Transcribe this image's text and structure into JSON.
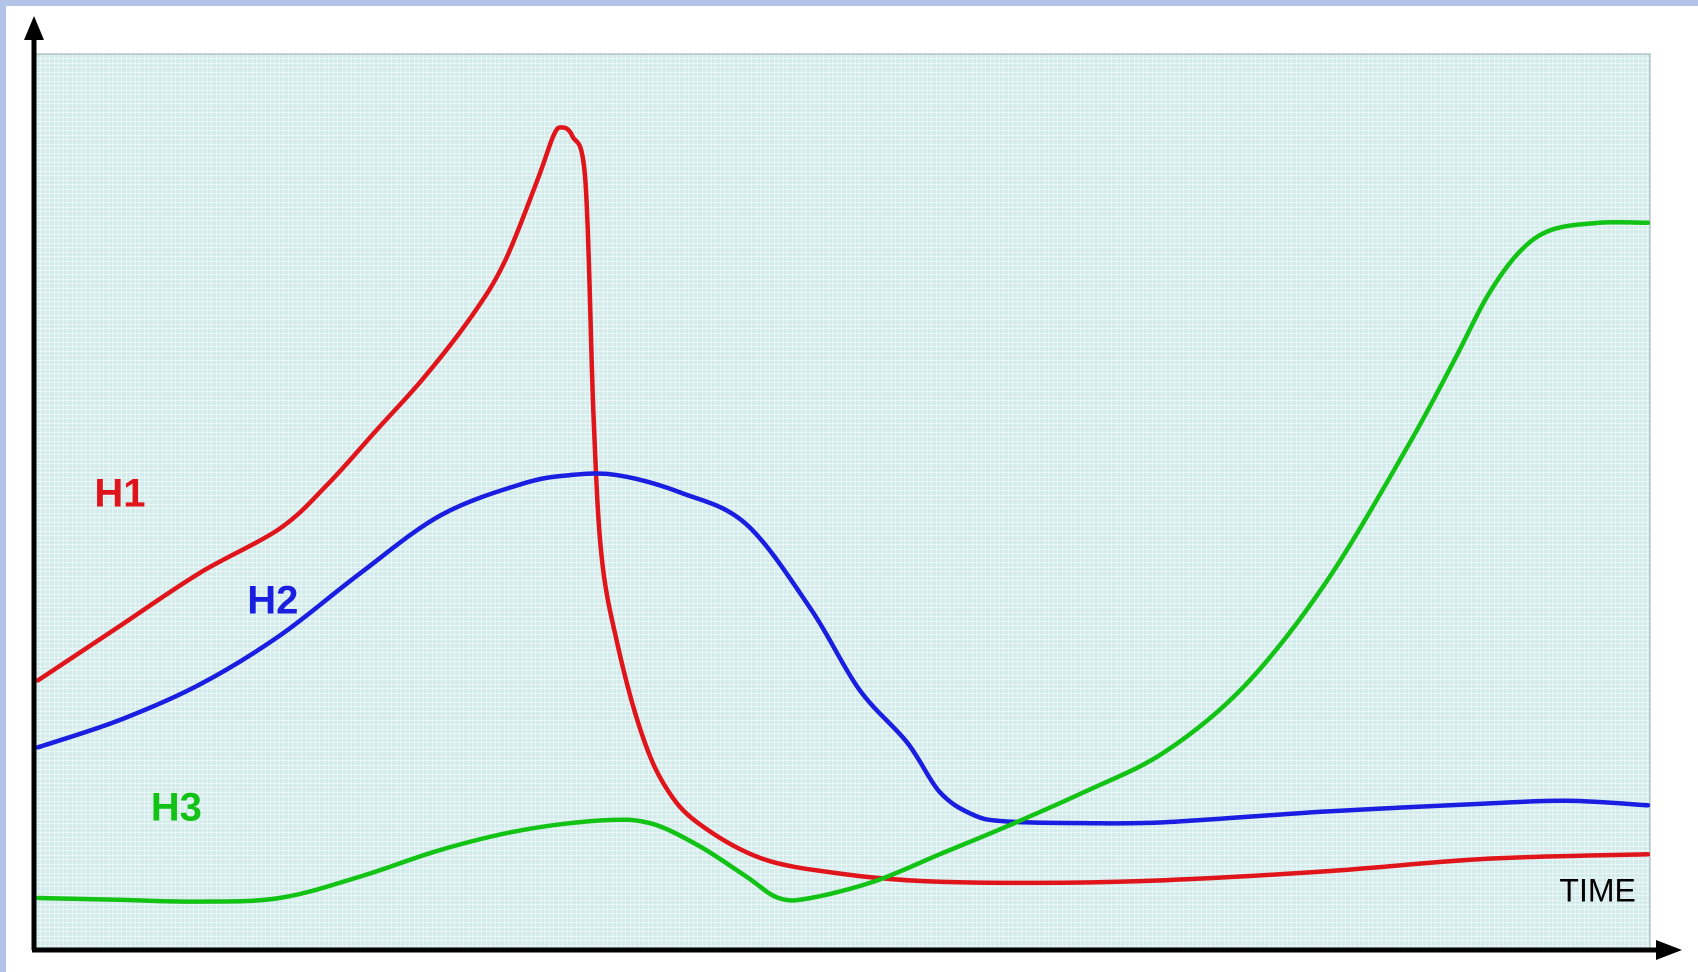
{
  "colors": {
    "page_border": "#b3c3e8",
    "plot_background": "#d4ebec",
    "grid_line": "#ffffff",
    "axis": "#000000",
    "h1": "#e0151b",
    "h2": "#1a1ee0",
    "h3": "#12c214"
  },
  "chart_data": {
    "type": "line",
    "title": "",
    "xlabel": "TIME",
    "ylabel": "",
    "xlim": [
      0,
      100
    ],
    "ylim": [
      0,
      100
    ],
    "grid": true,
    "legend": "none",
    "series": [
      {
        "name": "H1",
        "color": "#e0151b",
        "points": [
          [
            0,
            30
          ],
          [
            5,
            36
          ],
          [
            10,
            42
          ],
          [
            15,
            47
          ],
          [
            18,
            52
          ],
          [
            21,
            58
          ],
          [
            24,
            64
          ],
          [
            27,
            71
          ],
          [
            29,
            77
          ],
          [
            31,
            86
          ],
          [
            32,
            91
          ],
          [
            32.5,
            92
          ],
          [
            33.2,
            91
          ],
          [
            34,
            86
          ],
          [
            34.5,
            60
          ],
          [
            35,
            44
          ],
          [
            36,
            34
          ],
          [
            37.5,
            24
          ],
          [
            39,
            18
          ],
          [
            41,
            14
          ],
          [
            45,
            10
          ],
          [
            50,
            8.3
          ],
          [
            55,
            7.5
          ],
          [
            62,
            7.3
          ],
          [
            70,
            7.6
          ],
          [
            80,
            8.6
          ],
          [
            90,
            10
          ],
          [
            100,
            10.5
          ]
        ]
      },
      {
        "name": "H2",
        "color": "#1a1ee0",
        "points": [
          [
            0,
            22.5
          ],
          [
            5,
            25.5
          ],
          [
            10,
            29.5
          ],
          [
            15,
            35
          ],
          [
            20,
            42
          ],
          [
            25,
            48.5
          ],
          [
            30,
            52
          ],
          [
            33,
            53
          ],
          [
            36,
            53
          ],
          [
            40,
            51
          ],
          [
            44,
            47.5
          ],
          [
            48,
            38
          ],
          [
            51,
            29
          ],
          [
            54,
            23
          ],
          [
            56,
            17.5
          ],
          [
            58,
            15
          ],
          [
            60,
            14.2
          ],
          [
            65,
            14
          ],
          [
            70,
            14.1
          ],
          [
            80,
            15.3
          ],
          [
            90,
            16.2
          ],
          [
            95,
            16.5
          ],
          [
            100,
            16
          ]
        ]
      },
      {
        "name": "H3",
        "color": "#12c214",
        "points": [
          [
            0,
            5.6
          ],
          [
            5,
            5.4
          ],
          [
            10,
            5.2
          ],
          [
            15,
            5.6
          ],
          [
            20,
            8
          ],
          [
            25,
            11
          ],
          [
            30,
            13.2
          ],
          [
            35,
            14.3
          ],
          [
            38,
            14
          ],
          [
            41,
            11.5
          ],
          [
            44,
            8
          ],
          [
            46,
            5.6
          ],
          [
            48,
            5.6
          ],
          [
            52,
            7.5
          ],
          [
            56,
            10.5
          ],
          [
            60,
            13.5
          ],
          [
            65,
            17.5
          ],
          [
            70,
            22
          ],
          [
            75,
            29.5
          ],
          [
            80,
            41
          ],
          [
            85,
            56
          ],
          [
            88,
            66
          ],
          [
            90,
            73
          ],
          [
            92,
            78
          ],
          [
            94,
            80.5
          ],
          [
            97,
            81.3
          ],
          [
            100,
            81.3
          ]
        ]
      }
    ],
    "annotations": [
      {
        "series": "H1",
        "text": "H1",
        "x": 3.5,
        "y": 49.5
      },
      {
        "series": "H2",
        "text": "H2",
        "x": 13,
        "y": 37.5
      },
      {
        "series": "H3",
        "text": "H3",
        "x": 7,
        "y": 14.3
      },
      {
        "series": "",
        "text": "TIME",
        "x": 94.5,
        "y": 5.2
      }
    ]
  }
}
